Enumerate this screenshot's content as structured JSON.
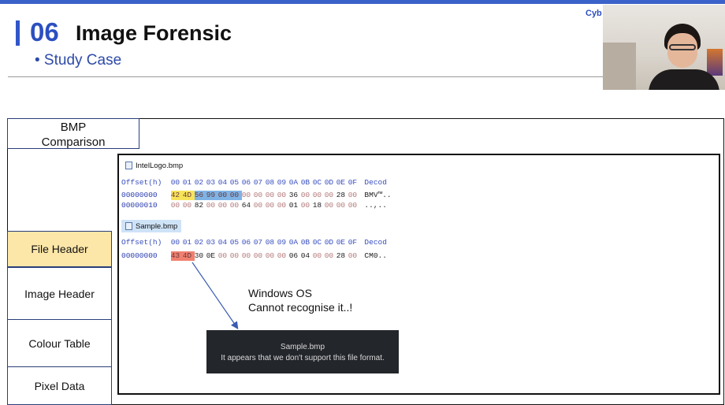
{
  "slide": {
    "number": "06",
    "title": "Image Forensic",
    "subtitle": "• Study Case",
    "brand": "Cyb"
  },
  "left_panel": {
    "comparison_label": "BMP\nComparison",
    "sections": [
      "File Header",
      "Image Header",
      "Colour Table",
      "Pixel Data"
    ]
  },
  "hex_views": [
    {
      "tab": "IntelLogo.bmp",
      "header": [
        "Offset(h)",
        "00",
        "01",
        "02",
        "03",
        "04",
        "05",
        "06",
        "07",
        "08",
        "09",
        "0A",
        "0B",
        "0C",
        "0D",
        "0E",
        "0F",
        "Decod"
      ],
      "rows": [
        {
          "offset": "00000000",
          "bytes": [
            "42",
            "4D",
            "56",
            "99",
            "00",
            "00",
            "00",
            "00",
            "00",
            "00",
            "36",
            "00",
            "00",
            "00",
            "28",
            "00"
          ],
          "decoded": "BMV™.."
        },
        {
          "offset": "00000010",
          "bytes": [
            "00",
            "00",
            "82",
            "00",
            "00",
            "00",
            "64",
            "00",
            "00",
            "00",
            "01",
            "00",
            "18",
            "00",
            "00",
            "00"
          ],
          "decoded": "..,.."
        }
      ]
    },
    {
      "tab": "Sample.bmp",
      "header": [
        "Offset(h)",
        "00",
        "01",
        "02",
        "03",
        "04",
        "05",
        "06",
        "07",
        "08",
        "09",
        "0A",
        "0B",
        "0C",
        "0D",
        "0E",
        "0F",
        "Decod"
      ],
      "rows": [
        {
          "offset": "00000000",
          "bytes": [
            "43",
            "4D",
            "30",
            "0E",
            "00",
            "00",
            "00",
            "00",
            "00",
            "00",
            "06",
            "04",
            "00",
            "00",
            "28",
            "00"
          ],
          "decoded": "CM0.."
        }
      ]
    }
  ],
  "annotation": {
    "line1": "Windows OS",
    "line2": "Cannot recognise it..!"
  },
  "error_toast": {
    "filename": "Sample.bmp",
    "message": "It appears that we don't support this file format."
  },
  "colors": {
    "accent": "#2c4fc0",
    "file_header_highlight": "#fde7a8",
    "signature_ok": "#f7e35a",
    "size_field": "#7fb3e6",
    "signature_bad": "#f08070",
    "arrow": "#3a5bb0"
  }
}
